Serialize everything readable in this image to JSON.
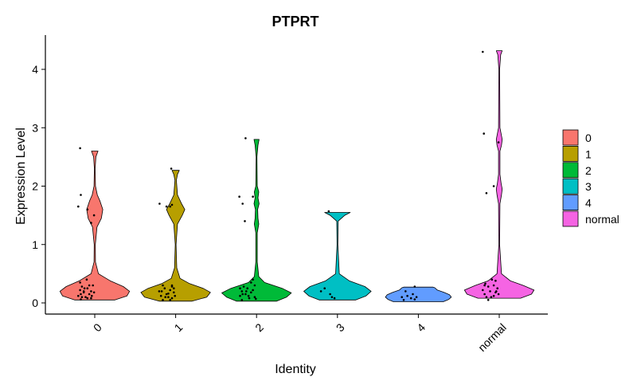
{
  "chart_data": {
    "type": "violin",
    "title": "PTPRT",
    "xlabel": "Identity",
    "ylabel": "Expression Level",
    "ylim": [
      -0.2,
      4.55
    ],
    "yticks": [
      "0",
      "1",
      "2",
      "3",
      "4"
    ],
    "ytick_values": [
      0,
      1,
      2,
      3,
      4
    ],
    "grid": false,
    "legend_position": "right",
    "categories": [
      "0",
      "1",
      "2",
      "3",
      "4",
      "normal"
    ],
    "series": [
      {
        "name": "0",
        "color": "#F8766D",
        "min": 0.05,
        "max": 2.6,
        "density": [
          [
            0.05,
            0.55
          ],
          [
            0.12,
            0.88
          ],
          [
            0.2,
            0.95
          ],
          [
            0.28,
            0.78
          ],
          [
            0.38,
            0.42
          ],
          [
            0.5,
            0.1
          ],
          [
            0.7,
            0.02
          ],
          [
            1.0,
            0.015
          ],
          [
            1.3,
            0.06
          ],
          [
            1.45,
            0.18
          ],
          [
            1.6,
            0.22
          ],
          [
            1.75,
            0.14
          ],
          [
            1.85,
            0.07
          ],
          [
            2.0,
            0.02
          ],
          [
            2.3,
            0.01
          ],
          [
            2.5,
            0.03
          ],
          [
            2.6,
            0.09
          ]
        ],
        "points": [
          [
            0.06,
            0.12
          ],
          [
            0.08,
            0.3
          ],
          [
            0.1,
            0.15
          ],
          [
            0.12,
            0.05
          ],
          [
            0.15,
            0.35
          ],
          [
            0.18,
            0.2
          ],
          [
            0.2,
            0.4
          ],
          [
            0.22,
            0.1
          ],
          [
            0.25,
            0.3
          ],
          [
            0.28,
            0.15
          ],
          [
            0.3,
            0.45
          ],
          [
            0.35,
            0.1
          ],
          [
            0.2,
            0.2
          ],
          [
            0.15,
            0.12
          ],
          [
            0.4,
            0.28
          ],
          [
            0.12,
            0.42
          ],
          [
            0.25,
            0.22
          ],
          [
            0.3,
            0.35
          ],
          [
            0.08,
            0.4
          ],
          [
            0.18,
            0.48
          ],
          [
            1.85,
            0.12
          ],
          [
            1.65,
            0.05
          ],
          [
            1.5,
            0.48
          ],
          [
            1.37,
            0.4
          ],
          [
            2.65,
            0.1
          ],
          [
            1.6,
            0.3
          ],
          [
            0.1,
            0.25
          ]
        ]
      },
      {
        "name": "1",
        "color": "#B79F00",
        "min": 0.03,
        "max": 2.27,
        "density": [
          [
            0.03,
            0.45
          ],
          [
            0.1,
            0.85
          ],
          [
            0.18,
            0.95
          ],
          [
            0.25,
            0.75
          ],
          [
            0.33,
            0.38
          ],
          [
            0.42,
            0.12
          ],
          [
            0.6,
            0.03
          ],
          [
            1.0,
            0.01
          ],
          [
            1.35,
            0.05
          ],
          [
            1.5,
            0.18
          ],
          [
            1.6,
            0.25
          ],
          [
            1.7,
            0.16
          ],
          [
            1.85,
            0.05
          ],
          [
            2.1,
            0.02
          ],
          [
            2.2,
            0.05
          ],
          [
            2.27,
            0.1
          ]
        ],
        "points": [
          [
            0.05,
            0.15
          ],
          [
            0.08,
            0.4
          ],
          [
            0.1,
            0.3
          ],
          [
            0.12,
            0.1
          ],
          [
            0.15,
            0.25
          ],
          [
            0.18,
            0.45
          ],
          [
            0.2,
            0.05
          ],
          [
            0.22,
            0.35
          ],
          [
            0.25,
            0.2
          ],
          [
            0.28,
            0.4
          ],
          [
            0.3,
            0.15
          ],
          [
            0.12,
            0.48
          ],
          [
            0.2,
            0.12
          ],
          [
            0.16,
            0.3
          ],
          [
            0.25,
            0.45
          ],
          [
            0.1,
            0.22
          ],
          [
            1.65,
            0.25
          ],
          [
            1.65,
            0.35
          ],
          [
            1.68,
            0.4
          ],
          [
            1.7,
            0.06
          ],
          [
            2.3,
            0.38
          ],
          [
            0.3,
            0.4
          ],
          [
            0.05,
            0.35
          ]
        ]
      },
      {
        "name": "2",
        "color": "#00BA38",
        "min": 0.03,
        "max": 2.8,
        "density": [
          [
            0.03,
            0.55
          ],
          [
            0.1,
            0.82
          ],
          [
            0.17,
            0.95
          ],
          [
            0.25,
            0.7
          ],
          [
            0.35,
            0.22
          ],
          [
            0.45,
            0.06
          ],
          [
            0.7,
            0.02
          ],
          [
            1.2,
            0.02
          ],
          [
            1.35,
            0.06
          ],
          [
            1.45,
            0.04
          ],
          [
            1.6,
            0.03
          ],
          [
            1.7,
            0.07
          ],
          [
            1.8,
            0.04
          ],
          [
            1.9,
            0.06
          ],
          [
            2.0,
            0.02
          ],
          [
            2.5,
            0.01
          ],
          [
            2.7,
            0.04
          ],
          [
            2.8,
            0.07
          ]
        ],
        "points": [
          [
            0.05,
            0.1
          ],
          [
            0.08,
            0.3
          ],
          [
            0.1,
            0.45
          ],
          [
            0.12,
            0.05
          ],
          [
            0.15,
            0.2
          ],
          [
            0.18,
            0.35
          ],
          [
            0.2,
            0.1
          ],
          [
            0.22,
            0.4
          ],
          [
            0.25,
            0.25
          ],
          [
            0.28,
            0.15
          ],
          [
            0.3,
            0.45
          ],
          [
            0.12,
            0.28
          ],
          [
            0.2,
            0.22
          ],
          [
            0.07,
            0.48
          ],
          [
            0.15,
            0.12
          ],
          [
            0.35,
            0.35
          ],
          [
            1.4,
            0.18
          ],
          [
            1.7,
            0.12
          ],
          [
            1.82,
            0.03
          ],
          [
            1.82,
            0.4
          ],
          [
            2.82,
            0.2
          ],
          [
            0.4,
            0.4
          ],
          [
            0.25,
            0.05
          ]
        ]
      },
      {
        "name": "3",
        "color": "#00BFC4",
        "min": 0.05,
        "max": 1.55,
        "density": [
          [
            0.05,
            0.5
          ],
          [
            0.12,
            0.78
          ],
          [
            0.2,
            0.92
          ],
          [
            0.28,
            0.75
          ],
          [
            0.38,
            0.32
          ],
          [
            0.5,
            0.05
          ],
          [
            1.0,
            0.01
          ],
          [
            1.4,
            0.02
          ],
          [
            1.5,
            0.2
          ],
          [
            1.55,
            0.35
          ]
        ],
        "points": [
          [
            0.08,
            0.42
          ],
          [
            0.2,
            0.05
          ],
          [
            0.25,
            0.15
          ],
          [
            0.1,
            0.35
          ],
          [
            0.15,
            0.3
          ],
          [
            1.57,
            0.26
          ]
        ]
      },
      {
        "name": "4",
        "color": "#619CFF",
        "min": 0.02,
        "max": 0.27,
        "density": [
          [
            0.02,
            0.68
          ],
          [
            0.06,
            0.83
          ],
          [
            0.1,
            0.9
          ],
          [
            0.14,
            0.85
          ],
          [
            0.18,
            0.7
          ],
          [
            0.22,
            0.52
          ],
          [
            0.26,
            0.45
          ],
          [
            0.27,
            0.4
          ]
        ],
        "points": [
          [
            0.05,
            0.1
          ],
          [
            0.08,
            0.3
          ],
          [
            0.12,
            0.2
          ],
          [
            0.06,
            0.4
          ],
          [
            0.1,
            0.45
          ],
          [
            0.15,
            0.35
          ],
          [
            0.28,
            0.4
          ],
          [
            0.1,
            0.05
          ],
          [
            0.2,
            0.15
          ]
        ]
      },
      {
        "name": "normal",
        "color": "#F564E3",
        "min": 0.08,
        "max": 4.32,
        "density": [
          [
            0.08,
            0.58
          ],
          [
            0.15,
            0.88
          ],
          [
            0.22,
            0.95
          ],
          [
            0.3,
            0.65
          ],
          [
            0.38,
            0.3
          ],
          [
            0.5,
            0.06
          ],
          [
            1.0,
            0.01
          ],
          [
            1.7,
            0.02
          ],
          [
            1.85,
            0.06
          ],
          [
            1.95,
            0.08
          ],
          [
            2.05,
            0.05
          ],
          [
            2.2,
            0.02
          ],
          [
            2.6,
            0.02
          ],
          [
            2.7,
            0.06
          ],
          [
            2.8,
            0.08
          ],
          [
            2.9,
            0.05
          ],
          [
            3.0,
            0.02
          ],
          [
            4.0,
            0.01
          ],
          [
            4.25,
            0.04
          ],
          [
            4.32,
            0.08
          ]
        ],
        "points": [
          [
            0.1,
            0.15
          ],
          [
            0.12,
            0.35
          ],
          [
            0.15,
            0.1
          ],
          [
            0.18,
            0.4
          ],
          [
            0.2,
            0.25
          ],
          [
            0.22,
            0.05
          ],
          [
            0.25,
            0.45
          ],
          [
            0.28,
            0.2
          ],
          [
            0.3,
            0.35
          ],
          [
            0.33,
            0.12
          ],
          [
            0.15,
            0.48
          ],
          [
            0.1,
            0.28
          ],
          [
            0.2,
            0.42
          ],
          [
            0.05,
            0.2
          ],
          [
            0.38,
            0.4
          ],
          [
            0.4,
            0.3
          ],
          [
            2.75,
            0.48
          ],
          [
            2.0,
            0.35
          ],
          [
            1.88,
            0.15
          ],
          [
            2.9,
            0.08
          ],
          [
            4.3,
            0.05
          ],
          [
            0.3,
            0.1
          ]
        ]
      }
    ]
  }
}
